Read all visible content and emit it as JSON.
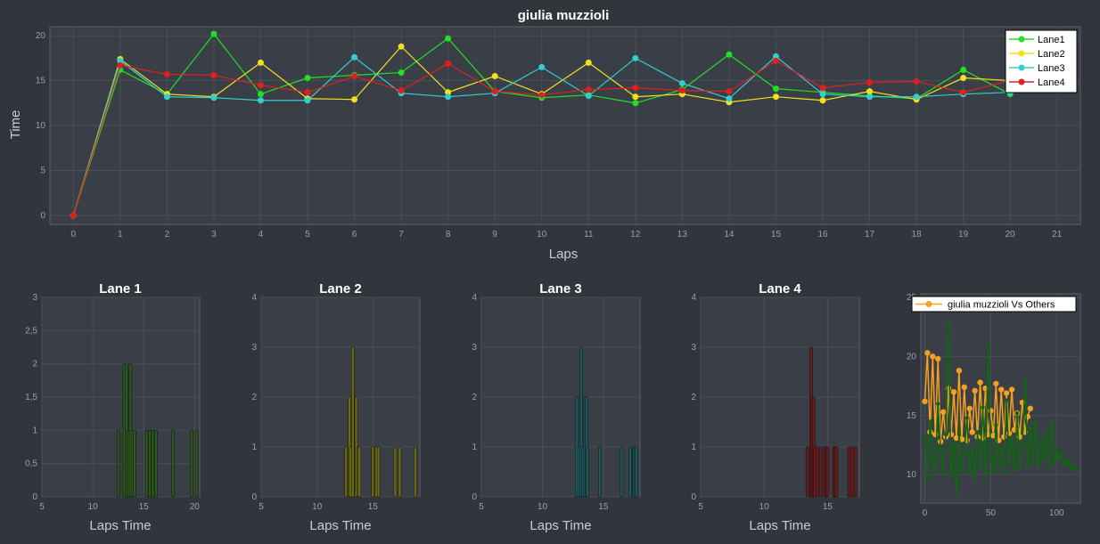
{
  "chart_data": [
    {
      "type": "line",
      "title": "giulia muzzioli",
      "xlabel": "Laps",
      "ylabel": "Time",
      "xlim": [
        -0.5,
        21.5
      ],
      "ylim": [
        -1,
        21
      ],
      "xticks": [
        0,
        1,
        2,
        3,
        4,
        5,
        6,
        7,
        8,
        9,
        10,
        11,
        12,
        13,
        14,
        15,
        16,
        17,
        18,
        19,
        20,
        21
      ],
      "yticks": [
        0,
        5,
        10,
        15,
        20
      ],
      "grid": true,
      "legend": "top-right",
      "series": [
        {
          "name": "Lane1",
          "color": "#22e022",
          "x": [
            0,
            1,
            2,
            3,
            4,
            5,
            6,
            7,
            8,
            9,
            10,
            11,
            12,
            13,
            14,
            15,
            16,
            17,
            18,
            19,
            20
          ],
          "values": [
            0,
            16.2,
            13.5,
            20.2,
            13.5,
            15.3,
            15.6,
            15.9,
            19.7,
            13.8,
            13.1,
            13.4,
            12.5,
            14.0,
            17.9,
            14.1,
            13.7,
            13.3,
            13.0,
            16.2,
            13.5
          ]
        },
        {
          "name": "Lane2",
          "color": "#f0e020",
          "x": [
            0,
            1,
            2,
            3,
            4,
            5,
            6,
            7,
            8,
            9,
            10,
            11,
            12,
            13,
            14,
            15,
            16,
            17,
            18,
            19,
            20
          ],
          "values": [
            0,
            17.4,
            13.5,
            13.2,
            17.0,
            13.0,
            12.9,
            18.8,
            13.7,
            15.5,
            13.5,
            17.0,
            13.2,
            13.5,
            12.6,
            13.2,
            12.8,
            13.8,
            12.9,
            15.3,
            15.0
          ]
        },
        {
          "name": "Lane3",
          "color": "#30d0d0",
          "x": [
            0,
            1,
            2,
            3,
            4,
            5,
            6,
            7,
            8,
            9,
            10,
            11,
            12,
            13,
            14,
            15,
            16,
            17,
            18,
            19,
            20
          ],
          "values": [
            0,
            17.2,
            13.2,
            13.1,
            12.8,
            12.8,
            17.6,
            13.6,
            13.2,
            13.6,
            16.5,
            13.3,
            17.5,
            14.7,
            13.0,
            17.7,
            13.5,
            13.2,
            13.2,
            13.5,
            13.7
          ]
        },
        {
          "name": "Lane4",
          "color": "#e02020",
          "x": [
            0,
            1,
            2,
            3,
            4,
            5,
            6,
            7,
            8,
            9,
            10,
            11,
            12,
            13,
            14,
            15,
            16,
            17,
            18,
            19,
            20
          ],
          "values": [
            0,
            16.7,
            15.7,
            15.6,
            14.5,
            13.7,
            15.5,
            13.9,
            16.9,
            13.8,
            13.4,
            14.0,
            14.2,
            13.9,
            13.8,
            17.2,
            14.2,
            14.8,
            14.9,
            13.7,
            15.0
          ]
        }
      ]
    },
    {
      "type": "bar",
      "title": "Lane 1",
      "xlabel": "Laps Time",
      "ylabel": "",
      "xlim": [
        5,
        20.5
      ],
      "ylim": [
        0,
        3
      ],
      "xticks": [
        5,
        10,
        15,
        20
      ],
      "yticks": [
        0,
        0.5,
        1,
        1.5,
        2,
        2.5,
        3
      ],
      "ytick_labels": [
        "0",
        "0,5",
        "1",
        "1,5",
        "2",
        "2,5",
        "3"
      ],
      "bar_color": "#2c5a1c",
      "bars": [
        [
          12.5,
          1
        ],
        [
          13.1,
          2
        ],
        [
          13.3,
          2
        ],
        [
          13.5,
          1
        ],
        [
          13.7,
          2
        ],
        [
          13.9,
          1
        ],
        [
          14.1,
          1
        ],
        [
          15.3,
          1
        ],
        [
          15.6,
          1
        ],
        [
          15.9,
          1
        ],
        [
          16.2,
          1
        ],
        [
          17.9,
          1
        ],
        [
          19.7,
          1
        ],
        [
          20.2,
          1
        ]
      ]
    },
    {
      "type": "bar",
      "title": "Lane 2",
      "xlabel": "Laps Time",
      "ylabel": "",
      "xlim": [
        5,
        19.2
      ],
      "ylim": [
        0,
        4
      ],
      "xticks": [
        5,
        10,
        15
      ],
      "yticks": [
        0,
        1,
        2,
        3,
        4
      ],
      "bar_color": "#6a6a14",
      "bars": [
        [
          12.6,
          1
        ],
        [
          12.8,
          1
        ],
        [
          12.9,
          2
        ],
        [
          13.0,
          1
        ],
        [
          13.2,
          3
        ],
        [
          13.5,
          2
        ],
        [
          13.7,
          1
        ],
        [
          13.8,
          1
        ],
        [
          15.0,
          1
        ],
        [
          15.3,
          1
        ],
        [
          15.5,
          1
        ],
        [
          17.0,
          1
        ],
        [
          17.4,
          1
        ],
        [
          18.8,
          1
        ]
      ]
    },
    {
      "type": "bar",
      "title": "Lane 3",
      "xlabel": "Laps Time",
      "ylabel": "",
      "xlim": [
        5,
        18
      ],
      "ylim": [
        0,
        4
      ],
      "xticks": [
        5,
        10,
        15
      ],
      "yticks": [
        0,
        1,
        2,
        3,
        4
      ],
      "bar_color": "#1c5a5e",
      "bars": [
        [
          12.8,
          2
        ],
        [
          13.0,
          1
        ],
        [
          13.2,
          3
        ],
        [
          13.3,
          1
        ],
        [
          13.5,
          2
        ],
        [
          13.6,
          2
        ],
        [
          13.7,
          1
        ],
        [
          14.7,
          1
        ],
        [
          16.5,
          1
        ],
        [
          17.2,
          1
        ],
        [
          17.5,
          1
        ],
        [
          17.6,
          1
        ],
        [
          17.7,
          1
        ]
      ]
    },
    {
      "type": "bar",
      "title": "Lane 4",
      "xlabel": "Laps Time",
      "ylabel": "",
      "xlim": [
        5,
        17.5
      ],
      "ylim": [
        0,
        4
      ],
      "xticks": [
        5,
        10,
        15
      ],
      "yticks": [
        0,
        1,
        2,
        3,
        4
      ],
      "bar_color": "#6a1c1c",
      "bars": [
        [
          13.4,
          1
        ],
        [
          13.7,
          3
        ],
        [
          13.8,
          2
        ],
        [
          13.9,
          2
        ],
        [
          14.0,
          1
        ],
        [
          14.2,
          1
        ],
        [
          14.5,
          1
        ],
        [
          14.8,
          1
        ],
        [
          14.9,
          1
        ],
        [
          15.0,
          1
        ],
        [
          15.5,
          1
        ],
        [
          15.6,
          1
        ],
        [
          15.7,
          1
        ],
        [
          16.7,
          1
        ],
        [
          16.9,
          1
        ],
        [
          17.2,
          1
        ]
      ]
    },
    {
      "type": "line",
      "title": "",
      "xlabel": "",
      "ylabel": "",
      "xlim": [
        -3,
        118
      ],
      "ylim": [
        7.6,
        25.3
      ],
      "xticks": [
        0,
        50,
        100
      ],
      "yticks": [
        10,
        15,
        20,
        25
      ],
      "grid": true,
      "legend": "top",
      "series": [
        {
          "name": "giulia muzzioli Vs Others",
          "color": "#f5a020",
          "x": [
            0,
            2,
            4,
            6,
            8,
            10,
            12,
            14,
            16,
            18,
            20,
            22,
            24,
            26,
            28,
            30,
            32,
            34,
            36,
            38,
            40,
            42,
            44,
            46,
            48,
            50,
            52,
            54,
            56,
            58,
            60,
            62,
            64,
            66,
            68,
            70,
            72,
            74,
            76,
            78,
            80
          ],
          "values": [
            16.2,
            20.3,
            13.6,
            20.0,
            13.4,
            19.8,
            12.8,
            15.3,
            13.2,
            17.3,
            13.4,
            17.0,
            13.1,
            18.8,
            13.0,
            17.4,
            12.9,
            15.6,
            13.6,
            17.1,
            13.2,
            17.8,
            13.1,
            17.3,
            13.4,
            15.4,
            13.3,
            17.7,
            12.9,
            17.2,
            13.2,
            16.9,
            13.5,
            17.2,
            13.8,
            15.2,
            13.2,
            16.1,
            13.6,
            14.9,
            15.6
          ]
        },
        {
          "name": "",
          "color": "#0b6a0b",
          "x": [
            0,
            2,
            4,
            6,
            8,
            10,
            12,
            14,
            16,
            18,
            20,
            22,
            24,
            26,
            28,
            30,
            32,
            34,
            36,
            38,
            40,
            42,
            44,
            46,
            48,
            50,
            52,
            54,
            56,
            58,
            60,
            62,
            64,
            66,
            68,
            70,
            72,
            74,
            76,
            78,
            80,
            82,
            84,
            86,
            88,
            90,
            92,
            94,
            96,
            98,
            100,
            102,
            104,
            106,
            108,
            110,
            112,
            114
          ],
          "values": [
            13.2,
            9.8,
            14.5,
            11.2,
            10.3,
            16.0,
            12.1,
            10.1,
            13.4,
            22.8,
            9.9,
            12.5,
            8.5,
            13.7,
            10.4,
            11.8,
            14.8,
            10.2,
            12.0,
            9.8,
            13.6,
            10.5,
            15.7,
            10.1,
            20.9,
            11.4,
            10.2,
            14.2,
            10.8,
            12.1,
            10.3,
            16.3,
            11.0,
            13.1,
            10.4,
            15.2,
            10.6,
            12.4,
            18.1,
            10.9,
            13.9,
            11.2,
            14.4,
            10.7,
            12.8,
            11.3,
            13.5,
            10.8,
            14.5,
            11.0,
            12.1,
            11.4,
            11.7,
            10.9,
            11.2,
            10.8,
            10.6,
            10.5
          ]
        }
      ]
    }
  ]
}
